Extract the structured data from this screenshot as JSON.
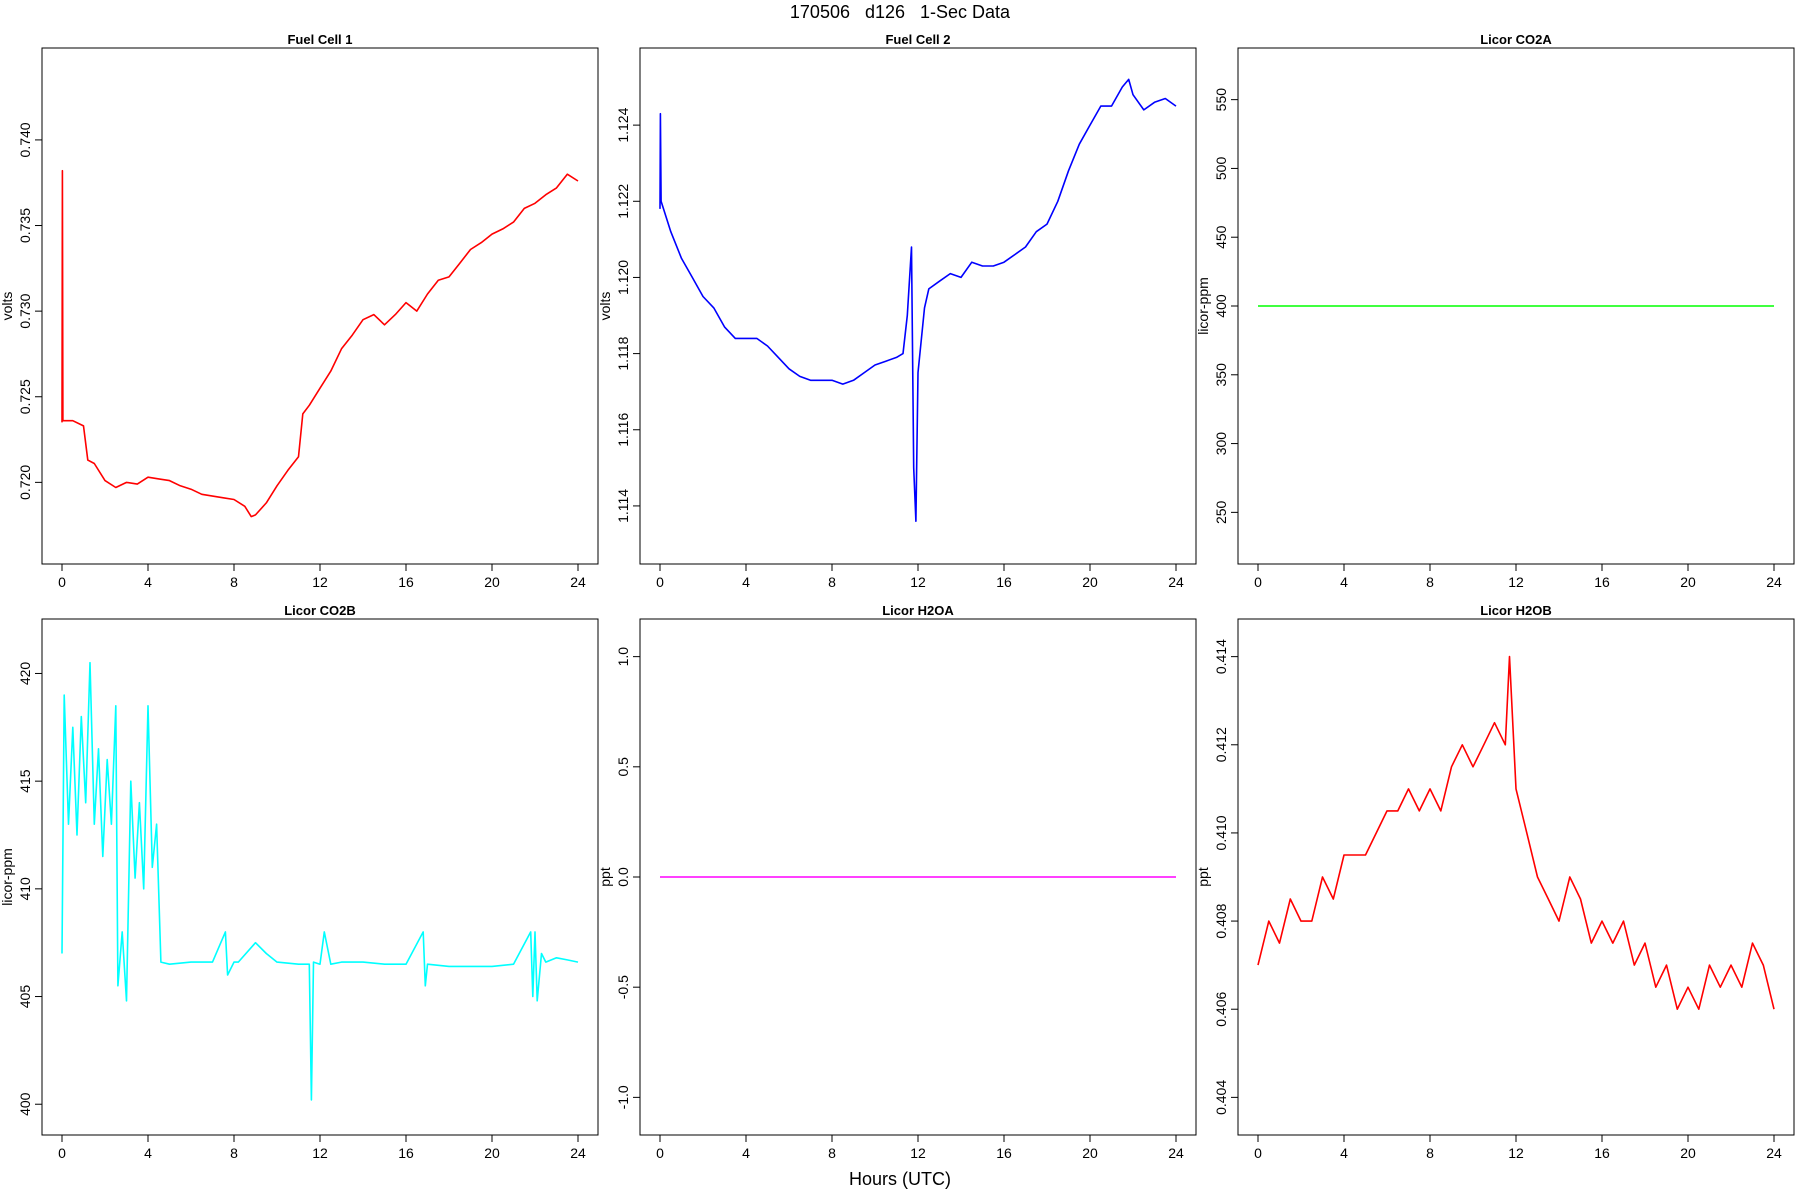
{
  "title": "170506   d126   1-Sec Data",
  "x_caption": "Hours (UTC)",
  "chart_data": [
    {
      "type": "line",
      "title": "Fuel Cell 1",
      "ylabel": "volts",
      "color": "#ff0000",
      "xlim": [
        0,
        24
      ],
      "ylim": [
        0.7164,
        0.7442
      ],
      "xticks": [
        0,
        4,
        8,
        12,
        16,
        20,
        24
      ],
      "xtick_labels": [
        "0",
        "4",
        "8",
        "12",
        "16",
        "20",
        "24"
      ],
      "yticks": [
        0.72,
        0.725,
        0.73,
        0.735,
        0.74
      ],
      "ytick_labels": [
        "0.720",
        "0.725",
        "0.730",
        "0.735",
        "0.740"
      ],
      "series": [
        {
          "x": [
            0,
            0.02,
            0.04,
            0.5,
            1.0,
            1.2,
            1.5,
            2.0,
            2.5,
            3.0,
            3.5,
            4.0,
            4.5,
            5.0,
            5.5,
            6.0,
            6.5,
            7.0,
            7.5,
            8.0,
            8.5,
            8.8,
            9.0,
            9.5,
            10.0,
            10.5,
            11.0,
            11.2,
            11.5,
            12.0,
            12.5,
            13.0,
            13.5,
            14.0,
            14.5,
            15.0,
            15.5,
            16.0,
            16.5,
            17.0,
            17.5,
            18.0,
            18.5,
            19.0,
            19.5,
            20.0,
            20.5,
            21.0,
            21.5,
            22.0,
            22.5,
            23.0,
            23.5,
            24.0
          ],
          "y": [
            0.7235,
            0.7382,
            0.7236,
            0.7236,
            0.7233,
            0.7213,
            0.7211,
            0.7201,
            0.7197,
            0.72,
            0.7199,
            0.7203,
            0.7202,
            0.7201,
            0.7198,
            0.7196,
            0.7193,
            0.7192,
            0.7191,
            0.719,
            0.7186,
            0.718,
            0.7181,
            0.7188,
            0.7198,
            0.7207,
            0.7215,
            0.724,
            0.7245,
            0.7255,
            0.7265,
            0.7278,
            0.7286,
            0.7295,
            0.7298,
            0.7292,
            0.7298,
            0.7305,
            0.73,
            0.731,
            0.7318,
            0.732,
            0.7328,
            0.7336,
            0.734,
            0.7345,
            0.7348,
            0.7352,
            0.736,
            0.7363,
            0.7368,
            0.7372,
            0.738,
            0.7376
          ]
        }
      ]
    },
    {
      "type": "line",
      "title": "Fuel Cell 2",
      "ylabel": "volts",
      "color": "#0000ff",
      "xlim": [
        0,
        24
      ],
      "ylim": [
        1.113,
        1.1255
      ],
      "xticks": [
        0,
        4,
        8,
        12,
        16,
        20,
        24
      ],
      "xtick_labels": [
        "0",
        "4",
        "8",
        "12",
        "16",
        "20",
        "24"
      ],
      "yticks": [
        1.114,
        1.116,
        1.118,
        1.12,
        1.122,
        1.124
      ],
      "ytick_labels": [
        "1.114",
        "1.116",
        "1.118",
        "1.120",
        "1.122",
        "1.124"
      ],
      "series": [
        {
          "x": [
            0,
            0.02,
            0.05,
            0.5,
            1.0,
            1.5,
            2.0,
            2.5,
            3.0,
            3.5,
            4.0,
            4.5,
            5.0,
            5.5,
            6.0,
            6.5,
            7.0,
            7.5,
            8.0,
            8.5,
            9.0,
            9.5,
            10.0,
            10.5,
            11.0,
            11.3,
            11.5,
            11.7,
            11.8,
            11.9,
            12.0,
            12.3,
            12.5,
            13.0,
            13.5,
            14.0,
            14.5,
            15.0,
            15.5,
            16.0,
            16.5,
            17.0,
            17.5,
            18.0,
            18.5,
            19.0,
            19.5,
            20.0,
            20.5,
            21.0,
            21.5,
            21.8,
            22.0,
            22.5,
            23.0,
            23.5,
            24.0
          ],
          "y": [
            1.1218,
            1.1243,
            1.122,
            1.1212,
            1.1205,
            1.12,
            1.1195,
            1.1192,
            1.1187,
            1.1184,
            1.1184,
            1.1184,
            1.1182,
            1.1179,
            1.1176,
            1.1174,
            1.1173,
            1.1173,
            1.1173,
            1.1172,
            1.1173,
            1.1175,
            1.1177,
            1.1178,
            1.1179,
            1.118,
            1.119,
            1.1208,
            1.115,
            1.1136,
            1.1175,
            1.1192,
            1.1197,
            1.1199,
            1.1201,
            1.12,
            1.1204,
            1.1203,
            1.1203,
            1.1204,
            1.1206,
            1.1208,
            1.1212,
            1.1214,
            1.122,
            1.1228,
            1.1235,
            1.124,
            1.1245,
            1.1245,
            1.125,
            1.1252,
            1.1248,
            1.1244,
            1.1246,
            1.1247,
            1.1245
          ]
        }
      ]
    },
    {
      "type": "line",
      "title": "Licor CO2A",
      "ylabel": "licor-ppm",
      "color": "#00ff00",
      "xlim": [
        0,
        24
      ],
      "ylim": [
        227,
        573
      ],
      "xticks": [
        0,
        4,
        8,
        12,
        16,
        20,
        24
      ],
      "xtick_labels": [
        "0",
        "4",
        "8",
        "12",
        "16",
        "20",
        "24"
      ],
      "yticks": [
        250,
        300,
        350,
        400,
        450,
        500,
        550
      ],
      "ytick_labels": [
        "250",
        "300",
        "350",
        "400",
        "450",
        "500",
        "550"
      ],
      "series": [
        {
          "x": [
            0,
            24
          ],
          "y": [
            400,
            400
          ]
        }
      ]
    },
    {
      "type": "line",
      "title": "Licor CO2B",
      "ylabel": "licor-ppm",
      "color": "#00ffff",
      "xlim": [
        0,
        24
      ],
      "ylim": [
        399.5,
        421.6
      ],
      "xticks": [
        0,
        4,
        8,
        12,
        16,
        20,
        24
      ],
      "xtick_labels": [
        "0",
        "4",
        "8",
        "12",
        "16",
        "20",
        "24"
      ],
      "yticks": [
        400,
        405,
        410,
        415,
        420
      ],
      "ytick_labels": [
        "400",
        "405",
        "410",
        "415",
        "420"
      ],
      "series": [
        {
          "x": [
            0,
            0.1,
            0.3,
            0.5,
            0.7,
            0.9,
            1.1,
            1.3,
            1.5,
            1.7,
            1.9,
            2.1,
            2.3,
            2.5,
            2.6,
            2.8,
            3.0,
            3.2,
            3.4,
            3.6,
            3.8,
            4.0,
            4.2,
            4.4,
            4.6,
            5.0,
            6.0,
            7.0,
            7.6,
            7.7,
            8.0,
            8.2,
            9.0,
            9.5,
            10.0,
            11.0,
            11.5,
            11.6,
            11.7,
            12.0,
            12.2,
            12.5,
            13.0,
            14.0,
            15.0,
            16.0,
            16.8,
            16.9,
            17.0,
            18.0,
            19.0,
            20.0,
            21.0,
            21.8,
            21.9,
            22.0,
            22.1,
            22.3,
            22.5,
            23.0,
            23.5,
            24.0
          ],
          "y": [
            407.0,
            419.0,
            413.0,
            417.5,
            412.5,
            418.0,
            414.0,
            420.5,
            413.0,
            416.5,
            411.5,
            416.0,
            413.0,
            418.5,
            405.5,
            408.0,
            404.8,
            415.0,
            410.5,
            414.0,
            410.0,
            418.5,
            411.0,
            413.0,
            406.6,
            406.5,
            406.6,
            406.6,
            408.0,
            406.0,
            406.6,
            406.6,
            407.5,
            407.0,
            406.6,
            406.5,
            406.5,
            400.2,
            406.6,
            406.5,
            408.0,
            406.5,
            406.6,
            406.6,
            406.5,
            406.5,
            408.0,
            405.5,
            406.5,
            406.4,
            406.4,
            406.4,
            406.5,
            408.0,
            405.0,
            408.0,
            404.8,
            407.0,
            406.6,
            406.8,
            406.7,
            406.6
          ]
        }
      ]
    },
    {
      "type": "line",
      "title": "Licor H2OA",
      "ylabel": "ppt",
      "color": "#ff00ff",
      "xlim": [
        0,
        24
      ],
      "ylim": [
        -1.08,
        1.08
      ],
      "xticks": [
        0,
        4,
        8,
        12,
        16,
        20,
        24
      ],
      "xtick_labels": [
        "0",
        "4",
        "8",
        "12",
        "16",
        "20",
        "24"
      ],
      "yticks": [
        -1.0,
        -0.5,
        0.0,
        0.5,
        1.0
      ],
      "ytick_labels": [
        "-1.0",
        "-0.5",
        "0.0",
        "0.5",
        "1.0"
      ],
      "series": [
        {
          "x": [
            0,
            24
          ],
          "y": [
            0,
            0
          ]
        }
      ]
    },
    {
      "type": "line",
      "title": "Licor H2OB",
      "ylabel": "ppt",
      "color": "#ff0000",
      "xlim": [
        0,
        24
      ],
      "ylim": [
        0.4036,
        0.4144
      ],
      "xticks": [
        0,
        4,
        8,
        12,
        16,
        20,
        24
      ],
      "xtick_labels": [
        "0",
        "4",
        "8",
        "12",
        "16",
        "20",
        "24"
      ],
      "yticks": [
        0.404,
        0.406,
        0.408,
        0.41,
        0.412,
        0.414
      ],
      "ytick_labels": [
        "0.404",
        "0.406",
        "0.408",
        "0.410",
        "0.412",
        "0.414"
      ],
      "series": [
        {
          "x": [
            0,
            0.5,
            1.0,
            1.5,
            2.0,
            2.5,
            3.0,
            3.5,
            4.0,
            4.5,
            5.0,
            5.5,
            6.0,
            6.5,
            7.0,
            7.5,
            8.0,
            8.5,
            9.0,
            9.5,
            10.0,
            10.5,
            11.0,
            11.5,
            11.7,
            12.0,
            12.5,
            13.0,
            13.5,
            14.0,
            14.5,
            15.0,
            15.5,
            16.0,
            16.5,
            17.0,
            17.5,
            18.0,
            18.5,
            19.0,
            19.5,
            20.0,
            20.5,
            21.0,
            21.5,
            22.0,
            22.5,
            23.0,
            23.5,
            24.0
          ],
          "y": [
            0.407,
            0.408,
            0.4075,
            0.4085,
            0.408,
            0.408,
            0.409,
            0.4085,
            0.4095,
            0.4095,
            0.4095,
            0.41,
            0.4105,
            0.4105,
            0.411,
            0.4105,
            0.411,
            0.4105,
            0.4115,
            0.412,
            0.4115,
            0.412,
            0.4125,
            0.412,
            0.414,
            0.411,
            0.41,
            0.409,
            0.4085,
            0.408,
            0.409,
            0.4085,
            0.4075,
            0.408,
            0.4075,
            0.408,
            0.407,
            0.4075,
            0.4065,
            0.407,
            0.406,
            0.4065,
            0.406,
            0.407,
            0.4065,
            0.407,
            0.4065,
            0.4075,
            0.407,
            0.406
          ]
        }
      ]
    }
  ]
}
